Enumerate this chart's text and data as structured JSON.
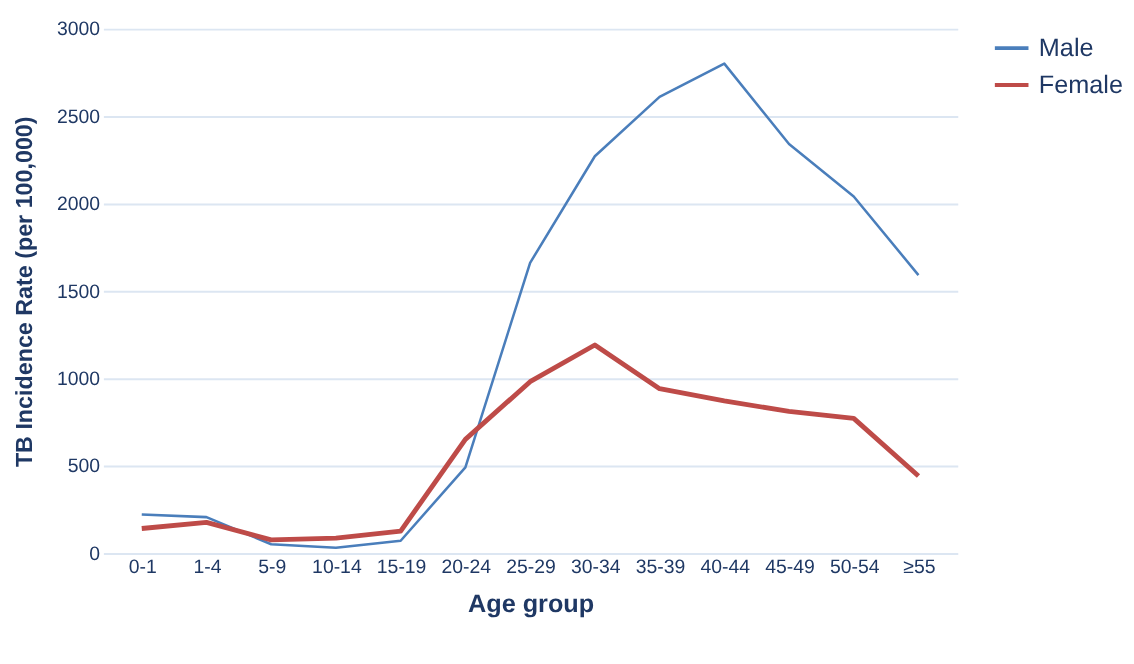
{
  "chart_data": {
    "type": "line",
    "xlabel": "Age group",
    "ylabel": "TB Incidence Rate (per 100,000)",
    "categories": [
      "0-1",
      "1-4",
      "5-9",
      "10-14",
      "15-19",
      "20-24",
      "25-29",
      "30-34",
      "35-39",
      "40-44",
      "45-49",
      "50-54",
      "≥55"
    ],
    "series": [
      {
        "name": "Male",
        "color": "#4a7ebb",
        "values": [
          220,
          205,
          50,
          30,
          70,
          490,
          1660,
          2270,
          2610,
          2800,
          2340,
          2040,
          1590
        ]
      },
      {
        "name": "Female",
        "color": "#be4b48",
        "values": [
          140,
          175,
          75,
          85,
          125,
          650,
          980,
          1190,
          940,
          870,
          810,
          770,
          440
        ]
      }
    ],
    "ylim": [
      0,
      3000
    ],
    "yticks": [
      0,
      500,
      1000,
      1500,
      2000,
      2500,
      3000
    ],
    "grid": "y",
    "legend": "right",
    "marker": "none",
    "line_style": "solid"
  }
}
